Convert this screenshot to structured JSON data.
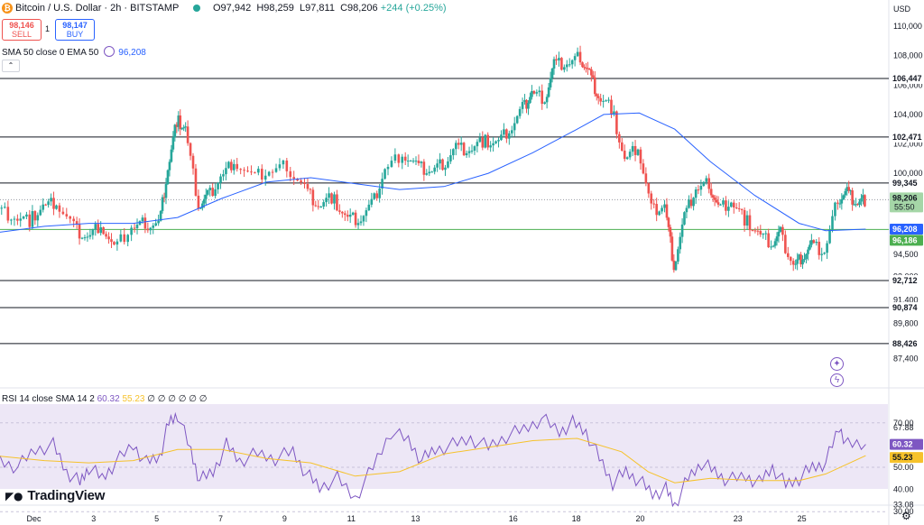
{
  "header": {
    "title": "Bitcoin / U.S. Dollar · 2h · BITSTAMP",
    "ohlc": "O97,942  H98,259  L97,811  C98,206",
    "change": "+244 (+0.25%)"
  },
  "trade": {
    "sell_price": "98,146",
    "sell_label": "SELL",
    "spread": "1",
    "buy_price": "98,147",
    "buy_label": "BUY"
  },
  "indicators": {
    "sma_label": "SMA 50 close 0 EMA 50",
    "sma_value": "96,208",
    "rsi_label": "RSI 14 close SMA 14 2",
    "rsi_value": "60.32",
    "rsi_sma_value": "55.23",
    "rsi_extra": "∅ ∅ ∅ ∅ ∅ ∅"
  },
  "brand": "TradingView",
  "icons": [
    "bitcoin-icon",
    "market-open-icon",
    "eye-icon",
    "collapse-icon",
    "plus-circle-icon",
    "lightning-icon",
    "settings-icon"
  ],
  "colors": {
    "up": "#26a69a",
    "down": "#ef5350",
    "sma": "#2962ff",
    "rsi": "#7e57c2",
    "rsi_ma": "#f6c22b",
    "level": "#131722",
    "green_line": "#4caf50"
  },
  "chart_data": {
    "type": "candlestick",
    "currency": "USD",
    "y_ticks": [
      "110,000",
      "108,000",
      "106,000",
      "104,000",
      "102,000",
      "100,000",
      "94,500",
      "93,000",
      "91,400",
      "89,800",
      "87,400"
    ],
    "x_ticks": [
      "Dec",
      "3",
      "5",
      "7",
      "9",
      "11",
      "13",
      "16",
      "18",
      "20",
      "23",
      "25"
    ],
    "levels": [
      "106,447",
      "102,471",
      "99,345",
      "92,712",
      "90,874",
      "88,426"
    ],
    "last_price": "98,206",
    "countdown": "55:50",
    "sma_price": "96,208",
    "green_price": "96,186",
    "rsi_ticks": [
      "70.00",
      "67.88",
      "50.00",
      "40.00",
      "33.08",
      "30.00"
    ],
    "rsi_last": "60.32",
    "rsi_ma_last": "55.23",
    "price_path": [
      [
        0,
        97600
      ],
      [
        0.018,
        97000
      ],
      [
        0.035,
        96800
      ],
      [
        0.05,
        97700
      ],
      [
        0.065,
        98000
      ],
      [
        0.085,
        96300
      ],
      [
        0.1,
        95600
      ],
      [
        0.115,
        96600
      ],
      [
        0.13,
        94800
      ],
      [
        0.15,
        96300
      ],
      [
        0.165,
        96600
      ],
      [
        0.18,
        96500
      ],
      [
        0.19,
        100300
      ],
      [
        0.2,
        103600
      ],
      [
        0.21,
        103000
      ],
      [
        0.225,
        97800
      ],
      [
        0.235,
        98400
      ],
      [
        0.25,
        99700
      ],
      [
        0.265,
        100900
      ],
      [
        0.285,
        99700
      ],
      [
        0.305,
        100100
      ],
      [
        0.325,
        100500
      ],
      [
        0.345,
        99000
      ],
      [
        0.36,
        97800
      ],
      [
        0.375,
        98400
      ],
      [
        0.39,
        97000
      ],
      [
        0.405,
        96800
      ],
      [
        0.42,
        97800
      ],
      [
        0.435,
        100200
      ],
      [
        0.455,
        101400
      ],
      [
        0.47,
        100500
      ],
      [
        0.485,
        100100
      ],
      [
        0.5,
        100600
      ],
      [
        0.515,
        101800
      ],
      [
        0.53,
        101600
      ],
      [
        0.545,
        102200
      ],
      [
        0.56,
        102000
      ],
      [
        0.575,
        102900
      ],
      [
        0.59,
        104400
      ],
      [
        0.6,
        105500
      ],
      [
        0.615,
        105100
      ],
      [
        0.625,
        107400
      ],
      [
        0.64,
        107400
      ],
      [
        0.655,
        107900
      ],
      [
        0.665,
        106800
      ],
      [
        0.675,
        105200
      ],
      [
        0.69,
        104500
      ],
      [
        0.705,
        100800
      ],
      [
        0.72,
        101800
      ],
      [
        0.735,
        97500
      ],
      [
        0.75,
        97800
      ],
      [
        0.76,
        93700
      ],
      [
        0.772,
        97000
      ],
      [
        0.785,
        98900
      ],
      [
        0.8,
        99300
      ],
      [
        0.81,
        97600
      ],
      [
        0.825,
        98100
      ],
      [
        0.84,
        96900
      ],
      [
        0.855,
        95900
      ],
      [
        0.87,
        95200
      ],
      [
        0.88,
        95900
      ],
      [
        0.895,
        93700
      ],
      [
        0.905,
        94400
      ],
      [
        0.915,
        95100
      ],
      [
        0.93,
        94600
      ],
      [
        0.945,
        98300
      ],
      [
        0.955,
        98800
      ],
      [
        0.965,
        98000
      ],
      [
        0.975,
        98206
      ]
    ],
    "rsi_path": [
      [
        0,
        53
      ],
      [
        0.02,
        50
      ],
      [
        0.04,
        58
      ],
      [
        0.06,
        60
      ],
      [
        0.075,
        48
      ],
      [
        0.09,
        43
      ],
      [
        0.1,
        50
      ],
      [
        0.115,
        45
      ],
      [
        0.13,
        52
      ],
      [
        0.15,
        60
      ],
      [
        0.165,
        52
      ],
      [
        0.18,
        55
      ],
      [
        0.19,
        70
      ],
      [
        0.2,
        74
      ],
      [
        0.215,
        57
      ],
      [
        0.225,
        44
      ],
      [
        0.24,
        48
      ],
      [
        0.255,
        60
      ],
      [
        0.27,
        53
      ],
      [
        0.29,
        56
      ],
      [
        0.31,
        54
      ],
      [
        0.33,
        57
      ],
      [
        0.345,
        47
      ],
      [
        0.36,
        41
      ],
      [
        0.38,
        45
      ],
      [
        0.4,
        36
      ],
      [
        0.42,
        50
      ],
      [
        0.44,
        66
      ],
      [
        0.46,
        62
      ],
      [
        0.475,
        53
      ],
      [
        0.49,
        58
      ],
      [
        0.51,
        60
      ],
      [
        0.53,
        63
      ],
      [
        0.55,
        59
      ],
      [
        0.57,
        64
      ],
      [
        0.59,
        67
      ],
      [
        0.61,
        72
      ],
      [
        0.63,
        66
      ],
      [
        0.645,
        70
      ],
      [
        0.66,
        66
      ],
      [
        0.675,
        54
      ],
      [
        0.69,
        43
      ],
      [
        0.705,
        48
      ],
      [
        0.72,
        44
      ],
      [
        0.735,
        38
      ],
      [
        0.75,
        40
      ],
      [
        0.76,
        33
      ],
      [
        0.775,
        45
      ],
      [
        0.79,
        52
      ],
      [
        0.805,
        48
      ],
      [
        0.82,
        44
      ],
      [
        0.84,
        46
      ],
      [
        0.855,
        43
      ],
      [
        0.87,
        50
      ],
      [
        0.885,
        42
      ],
      [
        0.9,
        45
      ],
      [
        0.915,
        50
      ],
      [
        0.93,
        52
      ],
      [
        0.945,
        68
      ],
      [
        0.955,
        60
      ],
      [
        0.975,
        60.32
      ]
    ],
    "sma_path": [
      [
        0,
        96000
      ],
      [
        0.05,
        96400
      ],
      [
        0.1,
        96600
      ],
      [
        0.15,
        96600
      ],
      [
        0.2,
        97000
      ],
      [
        0.25,
        98300
      ],
      [
        0.3,
        99400
      ],
      [
        0.35,
        99700
      ],
      [
        0.4,
        99300
      ],
      [
        0.45,
        98900
      ],
      [
        0.5,
        99100
      ],
      [
        0.55,
        100000
      ],
      [
        0.6,
        101400
      ],
      [
        0.65,
        103000
      ],
      [
        0.68,
        104000
      ],
      [
        0.72,
        104100
      ],
      [
        0.76,
        103000
      ],
      [
        0.8,
        100800
      ],
      [
        0.85,
        98500
      ],
      [
        0.9,
        96600
      ],
      [
        0.93,
        96100
      ],
      [
        0.975,
        96208
      ]
    ],
    "rsi_ma_path": [
      [
        0,
        55
      ],
      [
        0.05,
        53
      ],
      [
        0.1,
        52
      ],
      [
        0.15,
        53
      ],
      [
        0.2,
        58
      ],
      [
        0.25,
        58
      ],
      [
        0.3,
        54
      ],
      [
        0.35,
        52
      ],
      [
        0.4,
        46
      ],
      [
        0.45,
        48
      ],
      [
        0.5,
        56
      ],
      [
        0.55,
        59
      ],
      [
        0.6,
        62
      ],
      [
        0.65,
        63
      ],
      [
        0.7,
        57
      ],
      [
        0.73,
        48
      ],
      [
        0.76,
        43
      ],
      [
        0.8,
        45
      ],
      [
        0.85,
        44
      ],
      [
        0.9,
        44
      ],
      [
        0.93,
        47
      ],
      [
        0.975,
        55.23
      ]
    ]
  }
}
